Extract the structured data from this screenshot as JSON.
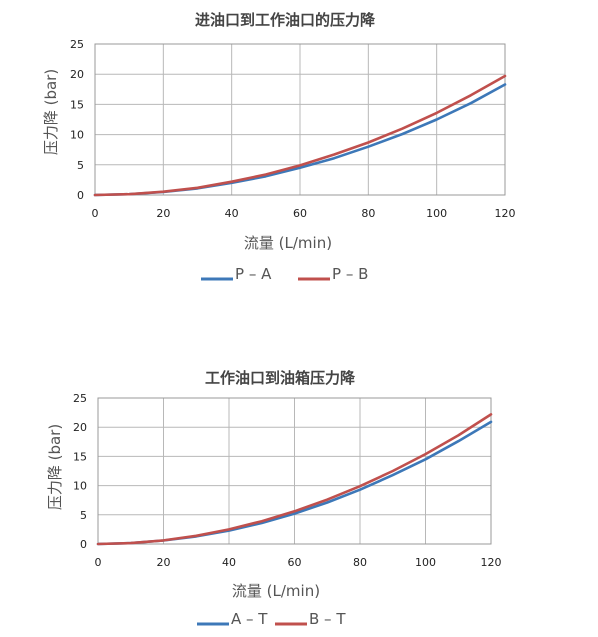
{
  "chart_data": [
    {
      "type": "line",
      "title": "进油口到工作油口的压力降",
      "xlabel": "流量 (L/min)",
      "ylabel": "压力降 (bar)",
      "xlim": [
        0,
        120
      ],
      "ylim": [
        0,
        25
      ],
      "xticks": [
        0,
        20,
        40,
        60,
        80,
        100,
        120
      ],
      "yticks": [
        0,
        5,
        10,
        15,
        20,
        25
      ],
      "grid": true,
      "legend_position": "bottom-center",
      "series": [
        {
          "name": "P – A",
          "color": "#3d78b8",
          "x": [
            0,
            10,
            20,
            30,
            40,
            50,
            60,
            70,
            80,
            90,
            100,
            110,
            120
          ],
          "y": [
            0,
            0.13,
            0.5,
            1.1,
            2.0,
            3.1,
            4.5,
            6.1,
            8.0,
            10.1,
            12.5,
            15.2,
            18.3
          ]
        },
        {
          "name": "P – B",
          "color": "#c0504d",
          "x": [
            0,
            10,
            20,
            30,
            40,
            50,
            60,
            70,
            80,
            90,
            100,
            110,
            120
          ],
          "y": [
            0,
            0.14,
            0.55,
            1.2,
            2.2,
            3.4,
            4.9,
            6.7,
            8.7,
            11.0,
            13.6,
            16.5,
            19.7
          ]
        }
      ]
    },
    {
      "type": "line",
      "title": "工作油口到油箱压力降",
      "xlabel": "流量 (L/min)",
      "ylabel": "压力降 (bar)",
      "xlim": [
        0,
        120
      ],
      "ylim": [
        0,
        25
      ],
      "xticks": [
        0,
        20,
        40,
        60,
        80,
        100,
        120
      ],
      "yticks": [
        0,
        5,
        10,
        15,
        20,
        25
      ],
      "grid": true,
      "legend_position": "bottom-center",
      "series": [
        {
          "name": "A – T",
          "color": "#3d78b8",
          "x": [
            0,
            10,
            20,
            30,
            40,
            50,
            60,
            70,
            80,
            90,
            100,
            110,
            120
          ],
          "y": [
            0,
            0.15,
            0.6,
            1.3,
            2.3,
            3.6,
            5.2,
            7.1,
            9.3,
            11.8,
            14.5,
            17.6,
            20.9
          ]
        },
        {
          "name": "B – T",
          "color": "#c0504d",
          "x": [
            0,
            10,
            20,
            30,
            40,
            50,
            60,
            70,
            80,
            90,
            100,
            110,
            120
          ],
          "y": [
            0,
            0.16,
            0.62,
            1.4,
            2.5,
            3.9,
            5.6,
            7.6,
            9.9,
            12.5,
            15.4,
            18.6,
            22.2
          ]
        }
      ]
    }
  ]
}
